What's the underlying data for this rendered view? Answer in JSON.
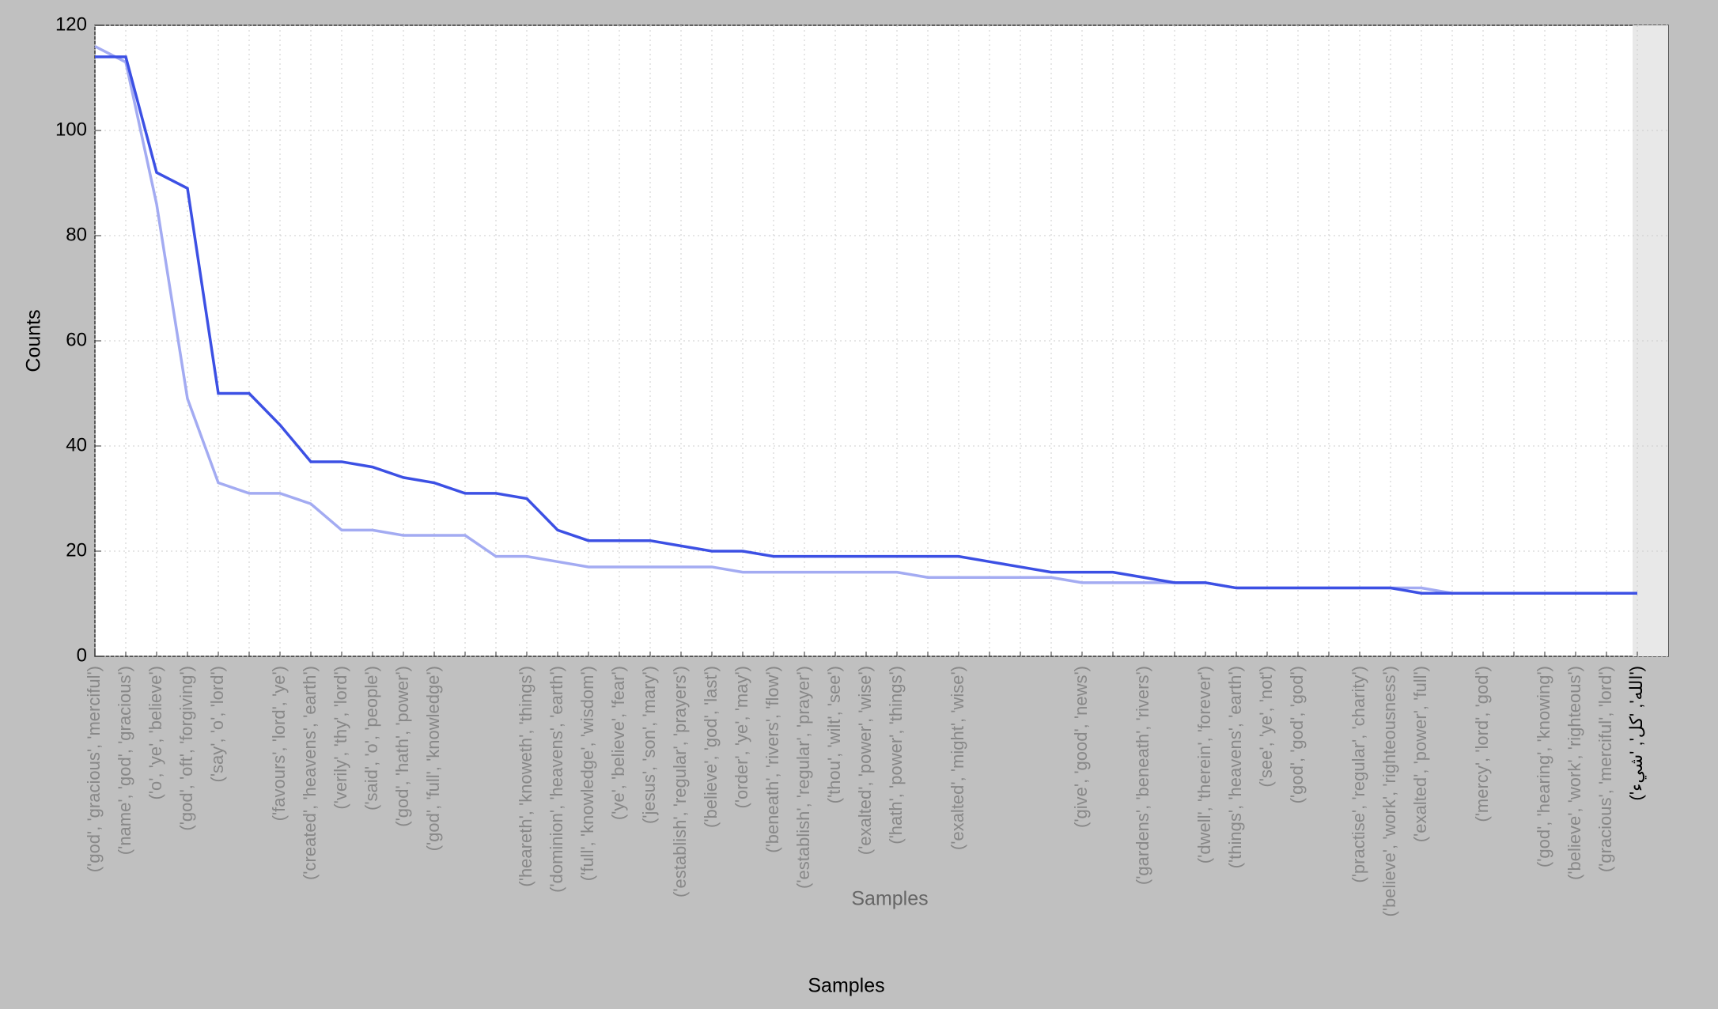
{
  "chart_data": {
    "type": "line",
    "ylabel": "Counts",
    "xlabel": "Samples",
    "inner_xlabel": "Samples",
    "categories": [
      "('god', 'gracious', 'merciful')",
      "('name', 'god', 'gracious')",
      "('o', 'ye', 'believe')",
      "('god', 'oft', 'forgiving')",
      "('say', 'o', 'lord')",
      null,
      "('favours', 'lord', 'ye')",
      "('created', 'heavens', 'earth')",
      "('verily', 'thy', 'lord')",
      "('said', 'o', 'people')",
      "('god', 'hath', 'power')",
      "('god', 'full', 'knowledge')",
      null,
      null,
      "('heareth', 'knoweth', 'things')",
      "('dominion', 'heavens', 'earth')",
      "('full', 'knowledge', 'wisdom')",
      "('ye', 'believe', 'fear')",
      "('jesus', 'son', 'mary')",
      "('establish', 'regular', 'prayers')",
      "('believe', 'god', 'last')",
      "('order', 'ye', 'may')",
      "('beneath', 'rivers', 'flow')",
      "('establish', 'regular', 'prayer')",
      "('thou', 'wilt', 'see')",
      "('exalted', 'power', 'wise')",
      "('hath', 'power', 'things')",
      null,
      "('exalted', 'might', 'wise')",
      null,
      null,
      null,
      "('give', 'good', 'news')",
      null,
      "('gardens', 'beneath', 'rivers')",
      null,
      "('dwell', 'therein', 'forever')",
      "('things', 'heavens', 'earth')",
      "('see', 'ye', 'not')",
      "('god', 'god', 'god')",
      null,
      "('practise', 'regular', 'charity')",
      "('believe', 'work', 'righteousness')",
      "('exalted', 'power', 'full')",
      null,
      "('mercy', 'lord', 'god')",
      null,
      "('god', 'hearing', 'knowing')",
      "('believe', 'work', 'righteous')",
      "('gracious', 'merciful', 'lord')",
      "('الله', 'كل', 'شيء')"
    ],
    "series": [
      {
        "color": "#a3abf2",
        "values": [
          116,
          113,
          86,
          49,
          33,
          31,
          31,
          29,
          24,
          24,
          23,
          23,
          23,
          19,
          19,
          18,
          17,
          17,
          17,
          17,
          17,
          16,
          16,
          16,
          16,
          16,
          16,
          15,
          15,
          15,
          15,
          15,
          14,
          14,
          14,
          14,
          14,
          13,
          13,
          13,
          13,
          13,
          13,
          13,
          12,
          12,
          12,
          12,
          12,
          12,
          null
        ]
      },
      {
        "color": "#3c50e4",
        "values": [
          114,
          114,
          92,
          89,
          50,
          50,
          44,
          37,
          37,
          36,
          34,
          33,
          31,
          31,
          30,
          24,
          22,
          22,
          22,
          21,
          20,
          20,
          19,
          19,
          19,
          19,
          19,
          19,
          19,
          18,
          17,
          16,
          16,
          16,
          15,
          14,
          14,
          13,
          13,
          13,
          13,
          13,
          13,
          12,
          12,
          12,
          12,
          12,
          12,
          12,
          12
        ]
      }
    ],
    "ylim": [
      0,
      120
    ],
    "yticks": [
      0,
      20,
      40,
      60,
      80,
      100,
      120
    ],
    "grid": true
  }
}
